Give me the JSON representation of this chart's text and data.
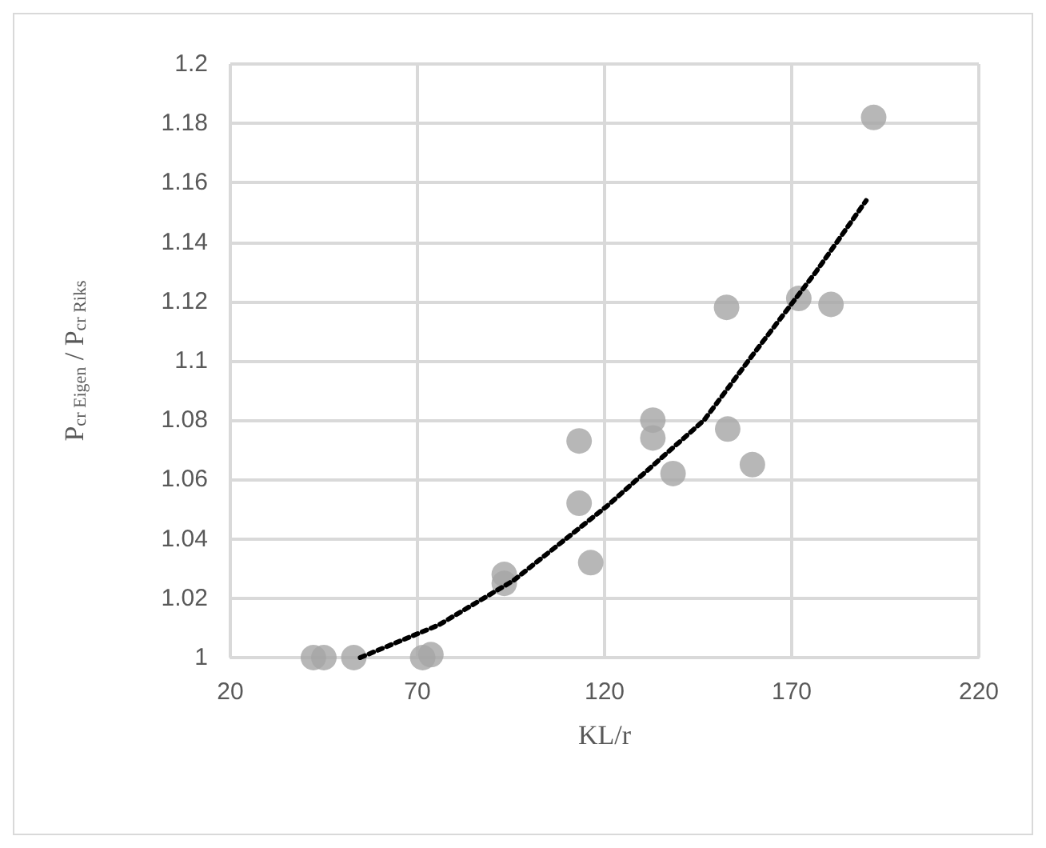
{
  "chart_data": {
    "type": "scatter",
    "xlabel": "KL/r",
    "ylabel": "P$_{cr Eigen}$ / P$_{cr Riks}$",
    "xlim": [
      20,
      220
    ],
    "xticks": [
      20,
      70,
      120,
      170,
      220
    ],
    "ylim": [
      1,
      1.2
    ],
    "yticks": [
      1,
      1.02,
      1.04,
      1.06,
      1.08,
      1.1,
      1.12,
      1.14,
      1.16,
      1.18,
      1.2
    ],
    "grid": true,
    "marker": "circle",
    "series": [
      {
        "color": "#a5a5a5",
        "x": [
          42.2,
          45,
          53,
          71.4,
          73.6,
          93.2,
          93.2,
          113.2,
          113.2,
          116.3,
          132.9,
          132.9,
          138.3,
          152.9,
          159.5,
          152.6,
          171.9,
          180.5,
          191.9
        ],
        "values": [
          1,
          1,
          1,
          1,
          1.001,
          1.028,
          1.025,
          1.073,
          1.052,
          1.032,
          1.08,
          1.074,
          1.062,
          1.077,
          1.065,
          1.118,
          1.121,
          1.119,
          1.182
        ]
      },
      {
        "type": "line",
        "color": "#000000",
        "line_style": "dotted",
        "marker": "none",
        "x": [
          54.7,
          75.7,
          95.7,
          120.6,
          146.6,
          159.6,
          176.5,
          189.9
        ],
        "values": [
          1,
          1.011,
          1.026,
          1.051,
          1.08,
          1.102,
          1.13,
          1.154
        ]
      }
    ]
  }
}
